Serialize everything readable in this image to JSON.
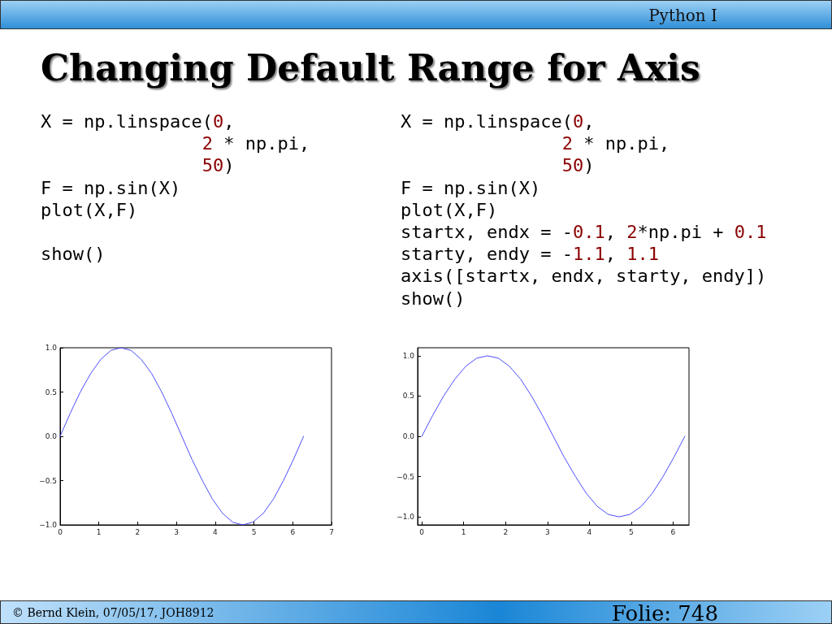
{
  "chart_data": [
    {
      "type": "line",
      "title": "Changing Default Range for Axis",
      "annotations": [
        "Python I",
        "X = np.linspace(0,\n               2 * np.pi,\n               50)\nF = np.sin(X)\nplot(X,F)\n\nshow()",
        "© Bernd Klein, 07/05/17, JOH8912",
        "Folie: 748"
      ],
      "x": [
        0,
        0.26,
        0.52,
        0.79,
        1.05,
        1.31,
        1.57,
        1.83,
        2.09,
        2.36,
        2.62,
        2.88,
        3.14,
        3.4,
        3.67,
        3.93,
        4.19,
        4.45,
        4.71,
        4.97,
        5.24,
        5.5,
        5.76,
        6.02,
        6.28
      ],
      "series": [
        {
          "color": "#4d4dff",
          "values": [
            0,
            0.26,
            0.5,
            0.71,
            0.87,
            0.97,
            1,
            0.97,
            0.87,
            0.71,
            0.5,
            0.26,
            0,
            -0.26,
            -0.5,
            -0.71,
            -0.87,
            -0.97,
            -1,
            -0.97,
            -0.87,
            -0.71,
            -0.5,
            -0.26,
            0
          ]
        }
      ],
      "xlim": [
        0,
        7
      ],
      "xticks": [
        0,
        1,
        2,
        3,
        4,
        5,
        6,
        7
      ],
      "ylim": [
        -1,
        1
      ],
      "yticks": [
        {
          "value": -1,
          "label": "−1.0"
        },
        {
          "value": -0.5,
          "label": "−0.5"
        },
        {
          "value": 0,
          "label": "0.0"
        },
        {
          "value": 0.5,
          "label": "0.5"
        },
        {
          "value": 1,
          "label": "1.0"
        }
      ],
      "grid": false,
      "marker": "none",
      "line_style": "solid"
    },
    {
      "type": "line",
      "annotations": [
        "X = np.linspace(0,\n               2 * np.pi,\n               50)\nF = np.sin(X)\nplot(X,F)\nstartx, endx = -0.1, 2*np.pi + 0.1\nstarty, endy = -1.1, 1.1\naxis([startx, endx, starty, endy])\nshow()"
      ],
      "x": [
        0,
        0.26,
        0.52,
        0.79,
        1.05,
        1.31,
        1.57,
        1.83,
        2.09,
        2.36,
        2.62,
        2.88,
        3.14,
        3.4,
        3.67,
        3.93,
        4.19,
        4.45,
        4.71,
        4.97,
        5.24,
        5.5,
        5.76,
        6.02,
        6.28
      ],
      "series": [
        {
          "color": "#4d4dff",
          "values": [
            0,
            0.26,
            0.5,
            0.71,
            0.87,
            0.97,
            1,
            0.97,
            0.87,
            0.71,
            0.5,
            0.26,
            0,
            -0.26,
            -0.5,
            -0.71,
            -0.87,
            -0.97,
            -1,
            -0.97,
            -0.87,
            -0.71,
            -0.5,
            -0.26,
            0
          ]
        }
      ],
      "xlim": [
        -0.1,
        6.38
      ],
      "xticks": [
        0,
        1,
        2,
        3,
        4,
        5,
        6
      ],
      "ylim": [
        -1.1,
        1.1
      ],
      "yticks": [
        {
          "value": -1,
          "label": "−1.0"
        },
        {
          "value": -0.5,
          "label": "−0.5"
        },
        {
          "value": 0,
          "label": "0.0"
        },
        {
          "value": 0.5,
          "label": "0.5"
        },
        {
          "value": 1,
          "label": "1.0"
        }
      ],
      "grid": false,
      "marker": "none",
      "line_style": "solid"
    }
  ]
}
